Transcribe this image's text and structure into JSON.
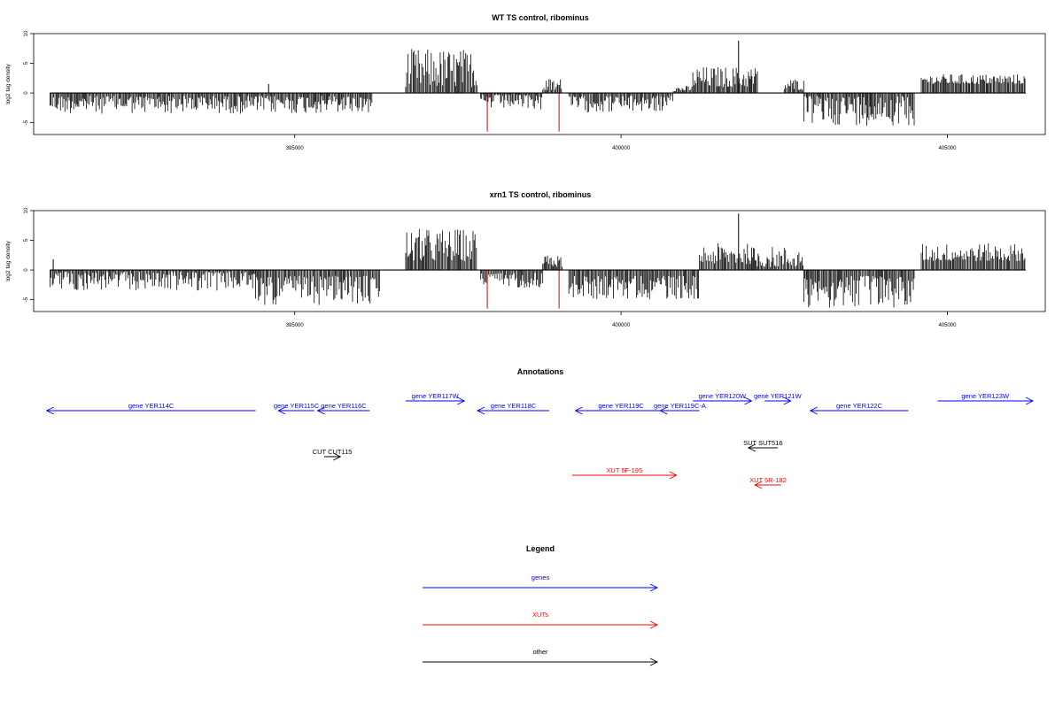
{
  "chart_data": [
    {
      "type": "bar",
      "title": "WT TS control, ribominus",
      "xlabel": "",
      "ylabel": "log2 tag density",
      "xlim": [
        391000,
        406500
      ],
      "ylim": [
        -7,
        10
      ],
      "xticks": [
        395000,
        400000,
        405000
      ],
      "yticks": [
        -5,
        0,
        5,
        10
      ],
      "series": [
        {
          "color": "#000000",
          "segments": [
            {
              "start": 391250,
              "end": 396200,
              "min": 0.5,
              "max": 3.5
            },
            {
              "start": 396700,
              "end": 397800,
              "min": 1.0,
              "max": 7.5,
              "sign": 1
            },
            {
              "start": 397850,
              "end": 398800,
              "min": 0.3,
              "max": 2.8
            },
            {
              "start": 398800,
              "end": 399100,
              "min": 0.3,
              "max": 2.5,
              "sign": 1
            },
            {
              "start": 399200,
              "end": 400800,
              "min": 0.5,
              "max": 3.3
            },
            {
              "start": 400800,
              "end": 401100,
              "min": 0.3,
              "max": 1.2,
              "sign": 1
            },
            {
              "start": 401100,
              "end": 402100,
              "min": 1.0,
              "max": 4.5,
              "sign": 1
            },
            {
              "start": 402500,
              "end": 402800,
              "min": 0.5,
              "max": 2.5,
              "sign": 1
            },
            {
              "start": 402800,
              "end": 404500,
              "min": 0.5,
              "max": 5.5
            },
            {
              "start": 404600,
              "end": 406200,
              "min": 1.5,
              "max": 3.2,
              "sign": 1
            }
          ]
        },
        {
          "color": "#cc0000",
          "spikes": [
            {
              "x": 397950,
              "y": -6.5
            },
            {
              "x": 399050,
              "y": -6.5
            }
          ]
        },
        {
          "color": "#000000",
          "spikes": [
            {
              "x": 394600,
              "y": 1.5
            },
            {
              "x": 401800,
              "y": 8.8
            }
          ]
        }
      ]
    },
    {
      "type": "bar",
      "title": "xrn1 TS control, ribominus",
      "xlabel": "",
      "ylabel": "log2 tag density",
      "xlim": [
        391000,
        406500
      ],
      "ylim": [
        -7,
        10
      ],
      "xticks": [
        395000,
        400000,
        405000
      ],
      "yticks": [
        -5,
        0,
        5,
        10
      ],
      "series": [
        {
          "color": "#000000",
          "segments": [
            {
              "start": 391250,
              "end": 394400,
              "min": 0.3,
              "max": 3.5
            },
            {
              "start": 394400,
              "end": 396300,
              "min": 1.0,
              "max": 6.0,
              "sign": -1
            },
            {
              "start": 396700,
              "end": 397800,
              "min": 1.5,
              "max": 7.0,
              "sign": 1
            },
            {
              "start": 397850,
              "end": 398800,
              "min": 0.5,
              "max": 3.0
            },
            {
              "start": 398800,
              "end": 399100,
              "min": 0.5,
              "max": 2.5,
              "sign": 1
            },
            {
              "start": 399200,
              "end": 401200,
              "min": 1.0,
              "max": 5.0,
              "sign": -1
            },
            {
              "start": 401200,
              "end": 402000,
              "min": 1.0,
              "max": 4.5,
              "sign": 1
            },
            {
              "start": 402000,
              "end": 402800,
              "min": 0.5,
              "max": 4.0,
              "sign": 1
            },
            {
              "start": 402800,
              "end": 404500,
              "min": 1.0,
              "max": 6.5,
              "sign": -1
            },
            {
              "start": 404600,
              "end": 406200,
              "min": 1.5,
              "max": 4.5,
              "sign": 1
            }
          ]
        },
        {
          "color": "#cc0000",
          "spikes": [
            {
              "x": 397950,
              "y": -6.5
            },
            {
              "x": 399050,
              "y": -6.5
            }
          ]
        },
        {
          "color": "#000000",
          "spikes": [
            {
              "x": 391300,
              "y": 1.8
            },
            {
              "x": 401800,
              "y": 9.5
            }
          ]
        }
      ]
    }
  ],
  "annotations": {
    "title": "Annotations",
    "xlim": [
      391000,
      406500
    ],
    "features": [
      {
        "label": "gene YER114C",
        "start": 391200,
        "end": 394400,
        "row": 1,
        "color": "#0000ff"
      },
      {
        "label": "gene YER115C",
        "start": 394750,
        "end": 395300,
        "row": 1,
        "color": "#0000ff"
      },
      {
        "label": "gene YER116C",
        "start": 395350,
        "end": 396150,
        "row": 1,
        "color": "#0000ff"
      },
      {
        "label": "gene YER117W",
        "start": 396700,
        "end": 397600,
        "row": 0,
        "color": "#0000ff"
      },
      {
        "label": "gene YER118C",
        "start": 397800,
        "end": 398900,
        "row": 1,
        "color": "#0000ff"
      },
      {
        "label": "gene YER119C",
        "start": 399300,
        "end": 400700,
        "row": 1,
        "color": "#0000ff"
      },
      {
        "label": "gene YER119C-A",
        "start": 400600,
        "end": 401200,
        "row": 1,
        "color": "#0000ff"
      },
      {
        "label": "gene YER120W",
        "start": 401100,
        "end": 402000,
        "row": 0,
        "color": "#0000ff"
      },
      {
        "label": "gene YER121W",
        "start": 402200,
        "end": 402600,
        "row": 0,
        "color": "#0000ff"
      },
      {
        "label": "gene YER122C",
        "start": 402900,
        "end": 404400,
        "row": 1,
        "color": "#0000ff"
      },
      {
        "label": "gene YER123W",
        "start": 404850,
        "end": 406500,
        "row": 0,
        "color": "#0000ff"
      },
      {
        "label": "CUT CUT115",
        "start": 395450,
        "end": 395700,
        "row": 2,
        "color": "#000000"
      },
      {
        "label": "SUT SUT516",
        "start": 401950,
        "end": 402400,
        "row": 3,
        "color": "#000000"
      },
      {
        "label": "XUT 5F-195",
        "start": 399250,
        "end": 400850,
        "row": 4,
        "color": "#ff0000"
      },
      {
        "label": "XUT 5R-182",
        "start": 402050,
        "end": 402450,
        "row": 5,
        "color": "#ff0000"
      }
    ]
  },
  "legend": {
    "title": "Legend",
    "items": [
      {
        "label": "genes",
        "color": "#0000ff"
      },
      {
        "label": "XUTs",
        "color": "#ff0000"
      },
      {
        "label": "other",
        "color": "#000000"
      }
    ]
  }
}
